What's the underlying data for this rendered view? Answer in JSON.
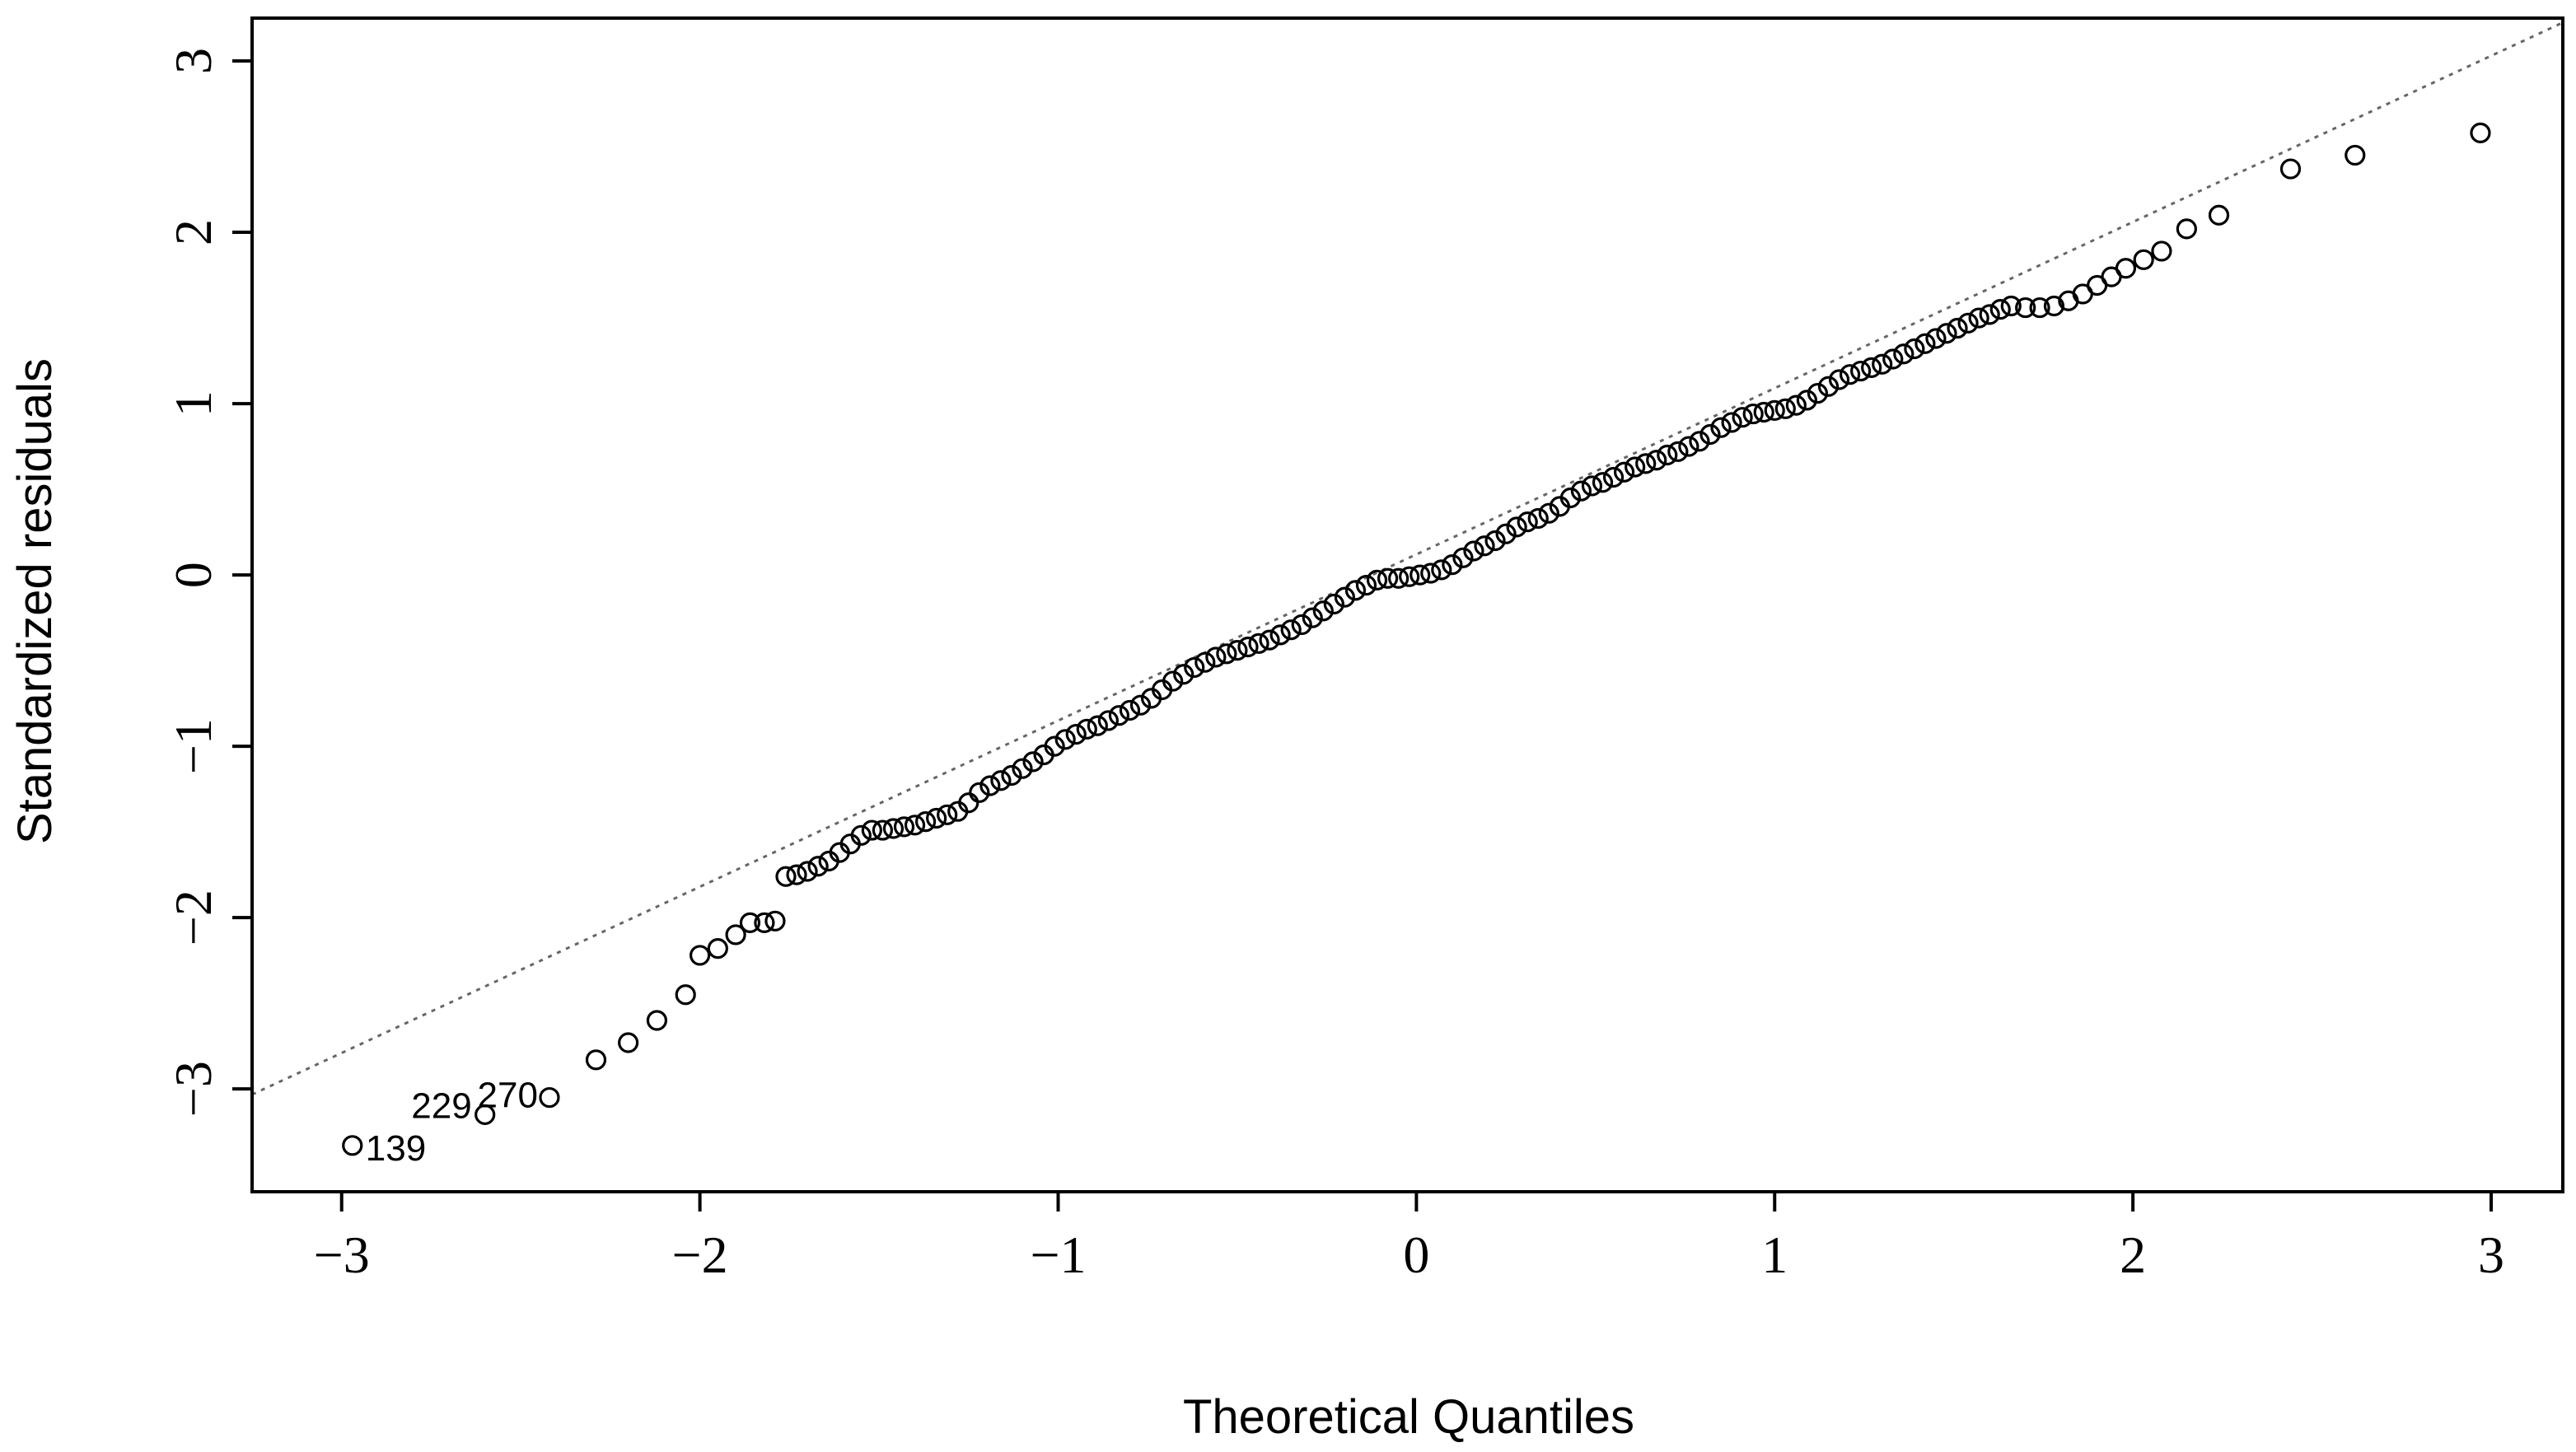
{
  "chart_data": {
    "type": "scatter",
    "xlabel": "Theoretical Quantiles",
    "ylabel": "Standardized residuals",
    "xlim": [
      -3.25,
      3.2
    ],
    "ylim": [
      -3.6,
      3.25
    ],
    "xticks": [
      -3,
      -2,
      -1,
      0,
      1,
      2,
      3
    ],
    "yticks": [
      -3,
      -2,
      -1,
      0,
      1,
      2,
      3
    ],
    "xtick_labels": [
      "−3",
      "−2",
      "−1",
      "0",
      "1",
      "2",
      "3"
    ],
    "ytick_labels": [
      "−3",
      "−2",
      "−1",
      "0",
      "1",
      "2",
      "3"
    ],
    "grid": false,
    "reference_line": {
      "slope": 0.97,
      "intercept": 0.12
    },
    "labeled_points": [
      {
        "label": "139",
        "x": -2.97,
        "y": -3.33
      },
      {
        "label": "229",
        "x": -2.6,
        "y": -3.15
      },
      {
        "label": "270",
        "x": -2.42,
        "y": -3.05
      }
    ],
    "points": [
      [
        -2.97,
        -3.33
      ],
      [
        -2.6,
        -3.15
      ],
      [
        -2.42,
        -3.05
      ],
      [
        -2.29,
        -2.83
      ],
      [
        -2.2,
        -2.73
      ],
      [
        -2.12,
        -2.6
      ],
      [
        -2.04,
        -2.45
      ],
      [
        -2.0,
        -2.22
      ],
      [
        -1.95,
        -2.18
      ],
      [
        -1.9,
        -2.1
      ],
      [
        -1.86,
        -2.03
      ],
      [
        -1.82,
        -2.03
      ],
      [
        -1.79,
        -2.02
      ],
      [
        -1.76,
        -1.76
      ],
      [
        -1.73,
        -1.75
      ],
      [
        -1.7,
        -1.73
      ],
      [
        -1.67,
        -1.7
      ],
      [
        -1.64,
        -1.67
      ],
      [
        -1.61,
        -1.62
      ],
      [
        -1.58,
        -1.57
      ],
      [
        -1.55,
        -1.52
      ],
      [
        -1.52,
        -1.49
      ],
      [
        -1.49,
        -1.49
      ],
      [
        -1.46,
        -1.48
      ],
      [
        -1.43,
        -1.47
      ],
      [
        -1.4,
        -1.46
      ],
      [
        -1.37,
        -1.44
      ],
      [
        -1.34,
        -1.42
      ],
      [
        -1.31,
        -1.4
      ],
      [
        -1.28,
        -1.38
      ],
      [
        -1.25,
        -1.33
      ],
      [
        -1.22,
        -1.27
      ],
      [
        -1.19,
        -1.23
      ],
      [
        -1.16,
        -1.2
      ],
      [
        -1.13,
        -1.17
      ],
      [
        -1.1,
        -1.13
      ],
      [
        -1.07,
        -1.09
      ],
      [
        -1.04,
        -1.05
      ],
      [
        -1.01,
        -1.0
      ],
      [
        -0.98,
        -0.96
      ],
      [
        -0.95,
        -0.93
      ],
      [
        -0.92,
        -0.9
      ],
      [
        -0.89,
        -0.88
      ],
      [
        -0.86,
        -0.85
      ],
      [
        -0.83,
        -0.82
      ],
      [
        -0.8,
        -0.79
      ],
      [
        -0.77,
        -0.76
      ],
      [
        -0.74,
        -0.72
      ],
      [
        -0.71,
        -0.67
      ],
      [
        -0.68,
        -0.62
      ],
      [
        -0.65,
        -0.58
      ],
      [
        -0.62,
        -0.54
      ],
      [
        -0.59,
        -0.51
      ],
      [
        -0.56,
        -0.48
      ],
      [
        -0.53,
        -0.46
      ],
      [
        -0.5,
        -0.44
      ],
      [
        -0.47,
        -0.42
      ],
      [
        -0.44,
        -0.4
      ],
      [
        -0.41,
        -0.38
      ],
      [
        -0.38,
        -0.35
      ],
      [
        -0.35,
        -0.32
      ],
      [
        -0.32,
        -0.29
      ],
      [
        -0.29,
        -0.25
      ],
      [
        -0.26,
        -0.21
      ],
      [
        -0.23,
        -0.17
      ],
      [
        -0.2,
        -0.13
      ],
      [
        -0.17,
        -0.09
      ],
      [
        -0.14,
        -0.06
      ],
      [
        -0.11,
        -0.03
      ],
      [
        -0.08,
        -0.02
      ],
      [
        -0.05,
        -0.02
      ],
      [
        -0.02,
        -0.01
      ],
      [
        0.01,
        0.0
      ],
      [
        0.04,
        0.01
      ],
      [
        0.07,
        0.03
      ],
      [
        0.1,
        0.06
      ],
      [
        0.13,
        0.1
      ],
      [
        0.16,
        0.14
      ],
      [
        0.19,
        0.17
      ],
      [
        0.22,
        0.2
      ],
      [
        0.25,
        0.24
      ],
      [
        0.28,
        0.28
      ],
      [
        0.31,
        0.31
      ],
      [
        0.34,
        0.33
      ],
      [
        0.37,
        0.36
      ],
      [
        0.4,
        0.4
      ],
      [
        0.43,
        0.45
      ],
      [
        0.46,
        0.49
      ],
      [
        0.49,
        0.52
      ],
      [
        0.52,
        0.54
      ],
      [
        0.55,
        0.57
      ],
      [
        0.58,
        0.6
      ],
      [
        0.61,
        0.63
      ],
      [
        0.64,
        0.65
      ],
      [
        0.67,
        0.67
      ],
      [
        0.7,
        0.7
      ],
      [
        0.73,
        0.72
      ],
      [
        0.76,
        0.75
      ],
      [
        0.79,
        0.78
      ],
      [
        0.82,
        0.82
      ],
      [
        0.85,
        0.86
      ],
      [
        0.88,
        0.89
      ],
      [
        0.91,
        0.92
      ],
      [
        0.94,
        0.94
      ],
      [
        0.97,
        0.95
      ],
      [
        1.0,
        0.96
      ],
      [
        1.03,
        0.97
      ],
      [
        1.06,
        0.99
      ],
      [
        1.09,
        1.02
      ],
      [
        1.12,
        1.06
      ],
      [
        1.15,
        1.1
      ],
      [
        1.18,
        1.14
      ],
      [
        1.21,
        1.17
      ],
      [
        1.24,
        1.19
      ],
      [
        1.27,
        1.21
      ],
      [
        1.3,
        1.23
      ],
      [
        1.33,
        1.26
      ],
      [
        1.36,
        1.29
      ],
      [
        1.39,
        1.32
      ],
      [
        1.42,
        1.35
      ],
      [
        1.45,
        1.38
      ],
      [
        1.48,
        1.41
      ],
      [
        1.51,
        1.44
      ],
      [
        1.54,
        1.47
      ],
      [
        1.57,
        1.5
      ],
      [
        1.6,
        1.52
      ],
      [
        1.63,
        1.55
      ],
      [
        1.66,
        1.57
      ],
      [
        1.7,
        1.56
      ],
      [
        1.74,
        1.56
      ],
      [
        1.78,
        1.57
      ],
      [
        1.82,
        1.6
      ],
      [
        1.86,
        1.64
      ],
      [
        1.9,
        1.69
      ],
      [
        1.94,
        1.74
      ],
      [
        1.98,
        1.79
      ],
      [
        2.03,
        1.84
      ],
      [
        2.08,
        1.89
      ],
      [
        2.15,
        2.02
      ],
      [
        2.24,
        2.1
      ],
      [
        2.44,
        2.37
      ],
      [
        2.62,
        2.45
      ],
      [
        2.97,
        2.58
      ]
    ]
  }
}
